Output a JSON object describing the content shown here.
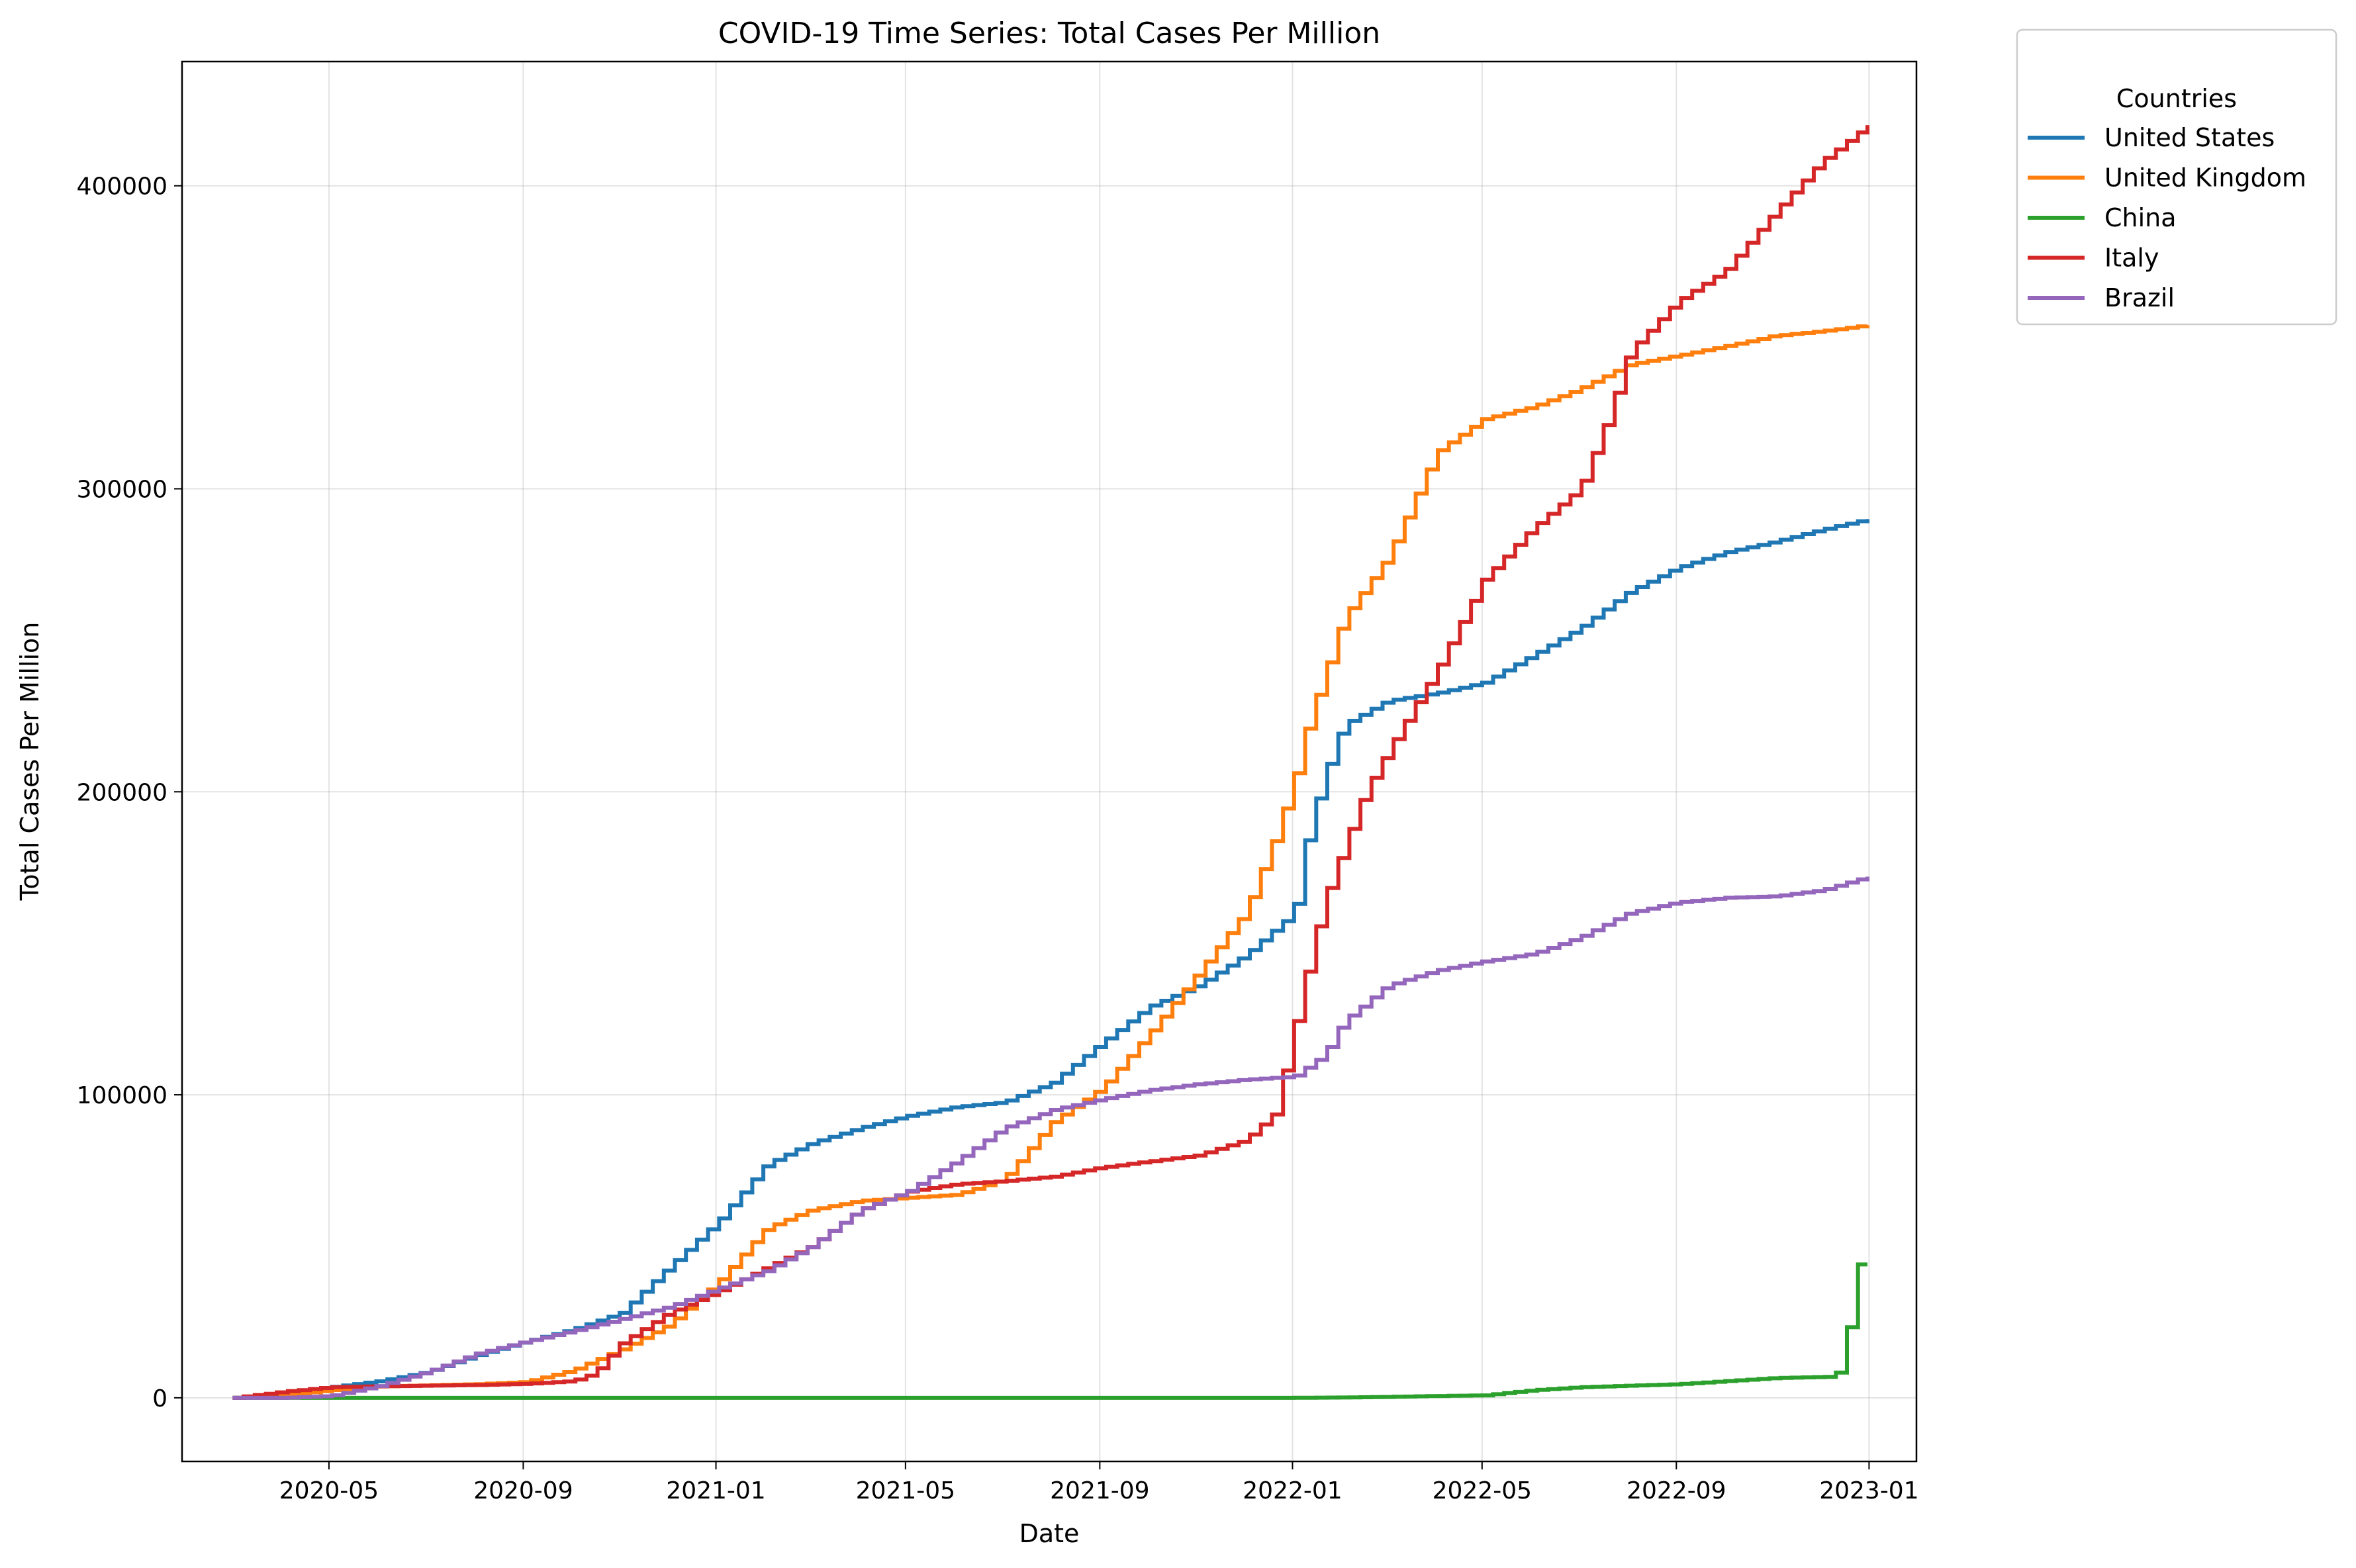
{
  "chart_data": {
    "type": "line",
    "title": "COVID-19 Time Series: Total Cases Per Million",
    "xlabel": "Date",
    "ylabel": "Total Cases Per Million",
    "x_type": "date",
    "xlim": [
      "2020-01-29",
      "2023-01-31"
    ],
    "ylim": [
      -21000,
      441000
    ],
    "x_ticks": [
      "2020-05",
      "2020-09",
      "2021-01",
      "2021-05",
      "2021-09",
      "2022-01",
      "2022-05",
      "2022-09",
      "2023-01"
    ],
    "y_ticks": [
      0,
      100000,
      200000,
      300000,
      400000
    ],
    "y_tick_labels": [
      "0",
      "100000",
      "200000",
      "300000",
      "400000"
    ],
    "grid": true,
    "legend": {
      "title": "Countries",
      "placement": "outside top-right"
    },
    "series": [
      {
        "name": "United States",
        "color": "#1f77b4",
        "points": [
          [
            "2020-03-01",
            0
          ],
          [
            "2020-04-01",
            800
          ],
          [
            "2020-05-01",
            3500
          ],
          [
            "2020-06-01",
            5500
          ],
          [
            "2020-07-01",
            8500
          ],
          [
            "2020-08-01",
            14000
          ],
          [
            "2020-09-01",
            18500
          ],
          [
            "2020-10-01",
            22500
          ],
          [
            "2020-11-01",
            28000
          ],
          [
            "2020-12-01",
            43000
          ],
          [
            "2021-01-01",
            58000
          ],
          [
            "2021-02-01",
            77000
          ],
          [
            "2021-03-01",
            84000
          ],
          [
            "2021-04-01",
            89000
          ],
          [
            "2021-05-01",
            93000
          ],
          [
            "2021-06-01",
            96000
          ],
          [
            "2021-07-01",
            97500
          ],
          [
            "2021-08-01",
            104000
          ],
          [
            "2021-09-01",
            117000
          ],
          [
            "2021-10-01",
            129000
          ],
          [
            "2021-11-01",
            136000
          ],
          [
            "2021-12-01",
            146000
          ],
          [
            "2022-01-01",
            160000
          ],
          [
            "2022-01-10",
            187000
          ],
          [
            "2022-01-20",
            205000
          ],
          [
            "2022-02-01",
            222000
          ],
          [
            "2022-03-01",
            230000
          ],
          [
            "2022-04-01",
            232500
          ],
          [
            "2022-05-01",
            236000
          ],
          [
            "2022-06-01",
            245000
          ],
          [
            "2022-07-01",
            254000
          ],
          [
            "2022-08-01",
            266000
          ],
          [
            "2022-09-01",
            274000
          ],
          [
            "2022-10-01",
            279000
          ],
          [
            "2022-11-01",
            282500
          ],
          [
            "2022-12-01",
            286500
          ],
          [
            "2022-12-31",
            290000
          ]
        ]
      },
      {
        "name": "United Kingdom",
        "color": "#ff7f0e",
        "points": [
          [
            "2020-03-01",
            0
          ],
          [
            "2020-04-01",
            800
          ],
          [
            "2020-05-01",
            2500
          ],
          [
            "2020-06-01",
            3800
          ],
          [
            "2020-07-01",
            4100
          ],
          [
            "2020-08-01",
            4500
          ],
          [
            "2020-09-01",
            5200
          ],
          [
            "2020-10-01",
            9000
          ],
          [
            "2020-11-01",
            16000
          ],
          [
            "2020-12-01",
            24000
          ],
          [
            "2021-01-01",
            38000
          ],
          [
            "2021-02-01",
            56000
          ],
          [
            "2021-03-01",
            62000
          ],
          [
            "2021-04-01",
            65000
          ],
          [
            "2021-05-01",
            66000
          ],
          [
            "2021-06-01",
            67000
          ],
          [
            "2021-07-01",
            72000
          ],
          [
            "2021-08-01",
            91000
          ],
          [
            "2021-09-01",
            102000
          ],
          [
            "2021-10-01",
            120000
          ],
          [
            "2021-11-01",
            140000
          ],
          [
            "2021-12-01",
            160000
          ],
          [
            "2021-12-20",
            185000
          ],
          [
            "2022-01-01",
            204000
          ],
          [
            "2022-01-10",
            223000
          ],
          [
            "2022-01-20",
            238000
          ],
          [
            "2022-02-01",
            257000
          ],
          [
            "2022-03-01",
            277000
          ],
          [
            "2022-04-01",
            312000
          ],
          [
            "2022-05-01",
            323000
          ],
          [
            "2022-06-01",
            327000
          ],
          [
            "2022-07-01",
            333000
          ],
          [
            "2022-08-01",
            341000
          ],
          [
            "2022-09-01",
            344000
          ],
          [
            "2022-10-01",
            347000
          ],
          [
            "2022-11-01",
            350500
          ],
          [
            "2022-12-01",
            352000
          ],
          [
            "2022-12-31",
            354000
          ]
        ]
      },
      {
        "name": "China",
        "color": "#2ca02c",
        "points": [
          [
            "2020-03-01",
            0
          ],
          [
            "2021-01-01",
            0
          ],
          [
            "2022-01-01",
            0
          ],
          [
            "2022-02-01",
            100
          ],
          [
            "2022-03-01",
            300
          ],
          [
            "2022-04-01",
            600
          ],
          [
            "2022-05-01",
            800
          ],
          [
            "2022-06-01",
            2500
          ],
          [
            "2022-07-01",
            3500
          ],
          [
            "2022-08-01",
            4000
          ],
          [
            "2022-09-01",
            4500
          ],
          [
            "2022-10-01",
            5500
          ],
          [
            "2022-11-01",
            6500
          ],
          [
            "2022-12-10",
            7000
          ],
          [
            "2022-12-16",
            15000
          ],
          [
            "2022-12-23",
            44000
          ],
          [
            "2022-12-31",
            44000
          ]
        ]
      },
      {
        "name": "Italy",
        "color": "#d62728",
        "points": [
          [
            "2020-03-01",
            0
          ],
          [
            "2020-04-01",
            2000
          ],
          [
            "2020-05-01",
            3500
          ],
          [
            "2020-06-01",
            3800
          ],
          [
            "2020-07-01",
            4000
          ],
          [
            "2020-08-01",
            4200
          ],
          [
            "2020-09-01",
            4600
          ],
          [
            "2020-10-01",
            5500
          ],
          [
            "2020-10-15",
            8000
          ],
          [
            "2020-11-01",
            18000
          ],
          [
            "2020-12-01",
            28000
          ],
          [
            "2021-01-01",
            35000
          ],
          [
            "2021-02-01",
            43000
          ],
          [
            "2021-03-01",
            50000
          ],
          [
            "2021-04-01",
            62000
          ],
          [
            "2021-05-01",
            68000
          ],
          [
            "2021-06-01",
            70500
          ],
          [
            "2021-07-01",
            71500
          ],
          [
            "2021-08-01",
            73000
          ],
          [
            "2021-09-01",
            76000
          ],
          [
            "2021-10-01",
            78000
          ],
          [
            "2021-11-01",
            80000
          ],
          [
            "2021-12-01",
            85000
          ],
          [
            "2021-12-20",
            94000
          ],
          [
            "2022-01-01",
            122000
          ],
          [
            "2022-01-10",
            143000
          ],
          [
            "2022-01-20",
            164000
          ],
          [
            "2022-02-01",
            181000
          ],
          [
            "2022-02-15",
            200000
          ],
          [
            "2022-03-01",
            213000
          ],
          [
            "2022-04-01",
            240000
          ],
          [
            "2022-05-01",
            270000
          ],
          [
            "2022-06-01",
            287000
          ],
          [
            "2022-07-01",
            300000
          ],
          [
            "2022-07-20",
            325000
          ],
          [
            "2022-08-01",
            345000
          ],
          [
            "2022-09-01",
            362000
          ],
          [
            "2022-10-01",
            372000
          ],
          [
            "2022-11-01",
            391000
          ],
          [
            "2022-12-01",
            408000
          ],
          [
            "2022-12-31",
            420000
          ]
        ]
      },
      {
        "name": "Brazil",
        "color": "#9467bd",
        "points": [
          [
            "2020-03-01",
            0
          ],
          [
            "2020-04-01",
            0
          ],
          [
            "2020-05-01",
            600
          ],
          [
            "2020-06-01",
            4000
          ],
          [
            "2020-07-01",
            8500
          ],
          [
            "2020-08-01",
            14500
          ],
          [
            "2020-09-01",
            18500
          ],
          [
            "2020-10-01",
            22000
          ],
          [
            "2020-11-01",
            26000
          ],
          [
            "2020-12-01",
            30000
          ],
          [
            "2021-01-01",
            36000
          ],
          [
            "2021-02-01",
            42000
          ],
          [
            "2021-03-01",
            50000
          ],
          [
            "2021-04-01",
            62000
          ],
          [
            "2021-05-01",
            68000
          ],
          [
            "2021-06-01",
            78000
          ],
          [
            "2021-07-01",
            89000
          ],
          [
            "2021-08-01",
            95000
          ],
          [
            "2021-09-01",
            98500
          ],
          [
            "2021-10-01",
            101500
          ],
          [
            "2021-11-01",
            103500
          ],
          [
            "2021-12-01",
            105000
          ],
          [
            "2022-01-01",
            106000
          ],
          [
            "2022-01-20",
            113000
          ],
          [
            "2022-02-01",
            124000
          ],
          [
            "2022-03-01",
            136000
          ],
          [
            "2022-04-01",
            141000
          ],
          [
            "2022-05-01",
            144000
          ],
          [
            "2022-06-01",
            146500
          ],
          [
            "2022-07-01",
            152000
          ],
          [
            "2022-08-01",
            160000
          ],
          [
            "2022-09-01",
            163500
          ],
          [
            "2022-10-01",
            165000
          ],
          [
            "2022-11-01",
            165500
          ],
          [
            "2022-12-01",
            167500
          ],
          [
            "2022-12-31",
            172000
          ]
        ]
      }
    ]
  }
}
